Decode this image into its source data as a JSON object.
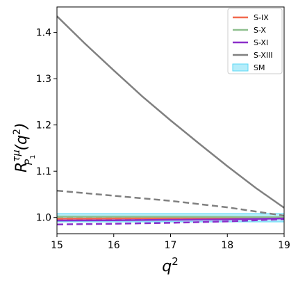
{
  "chart_data": {
    "type": "line",
    "xlabel": "q",
    "xlabel_sup": "2",
    "ylabel": {
      "main": "R",
      "sup": "τμ",
      "sub": "P",
      "subsub": "1",
      "arg": "(q",
      "argsup": "2",
      "close": ")"
    },
    "xlim": [
      15,
      19
    ],
    "ylim": [
      0.965,
      1.455
    ],
    "xticks": [
      15,
      16,
      17,
      18,
      19
    ],
    "xtick_labels": [
      "15",
      "16",
      "17",
      "18",
      "19"
    ],
    "yticks": [
      1.0,
      1.1,
      1.2,
      1.3,
      1.4
    ],
    "ytick_labels": [
      "1.0",
      "1.1",
      "1.2",
      "1.3",
      "1.4"
    ],
    "grid": false,
    "legend_position": "top-right",
    "legend": [
      {
        "label": "S-IX",
        "color": "#f26a4f",
        "kind": "line"
      },
      {
        "label": "S-X",
        "color": "#8fbf8f",
        "kind": "line"
      },
      {
        "label": "S-XI",
        "color": "#8b2fc9",
        "kind": "line"
      },
      {
        "label": "S-XIII",
        "color": "#808080",
        "kind": "line"
      },
      {
        "label": "SM",
        "color": "#5ad8f5",
        "kind": "band"
      }
    ],
    "bands": [
      {
        "name": "SM",
        "color": "#5ad8f5",
        "x": [
          15,
          19
        ],
        "lower": [
          0.9905,
          0.9905
        ],
        "upper": [
          1.0085,
          1.0085
        ]
      }
    ],
    "series": [
      {
        "name": "S-IX",
        "style": "solid",
        "color": "#f26a4f",
        "x": [
          15,
          16,
          17,
          18,
          19
        ],
        "values": [
          0.9975,
          0.998,
          0.9985,
          0.999,
          0.9995
        ]
      },
      {
        "name": "S-X",
        "style": "solid",
        "color": "#8fbf8f",
        "x": [
          15,
          16,
          17,
          18,
          19
        ],
        "values": [
          1.002,
          1.0018,
          1.0016,
          1.0012,
          1.0005
        ]
      },
      {
        "name": "S-XI",
        "style": "solid",
        "color": "#8b2fc9",
        "x": [
          15,
          16,
          17,
          18,
          19
        ],
        "values": [
          0.9935,
          0.994,
          0.995,
          0.996,
          0.998
        ]
      },
      {
        "name": "S-XIII",
        "style": "solid",
        "color": "#808080",
        "x": [
          15,
          15.5,
          16,
          16.5,
          17,
          17.5,
          18,
          18.5,
          19
        ],
        "values": [
          1.435,
          1.375,
          1.318,
          1.262,
          1.21,
          1.16,
          1.111,
          1.064,
          1.021
        ]
      },
      {
        "style": "dashed",
        "color": "#f26a4f",
        "x": [
          15,
          16,
          17,
          18,
          19
        ],
        "values": [
          0.9955,
          0.996,
          0.9968,
          0.9975,
          0.9985
        ]
      },
      {
        "style": "dashed",
        "color": "#8fbf8f",
        "x": [
          15,
          16,
          17,
          18,
          19
        ],
        "values": [
          1.0005,
          1.0002,
          1.0,
          0.9998,
          0.9995
        ]
      },
      {
        "style": "dashed",
        "color": "#8b2fc9",
        "x": [
          15,
          16,
          17,
          18,
          19
        ],
        "values": [
          0.985,
          0.9865,
          0.9885,
          0.9915,
          0.9965
        ]
      },
      {
        "style": "dashed",
        "color": "#808080",
        "x": [
          15,
          16,
          17,
          18,
          19
        ],
        "values": [
          1.058,
          1.047,
          1.036,
          1.022,
          1.004
        ]
      }
    ]
  }
}
